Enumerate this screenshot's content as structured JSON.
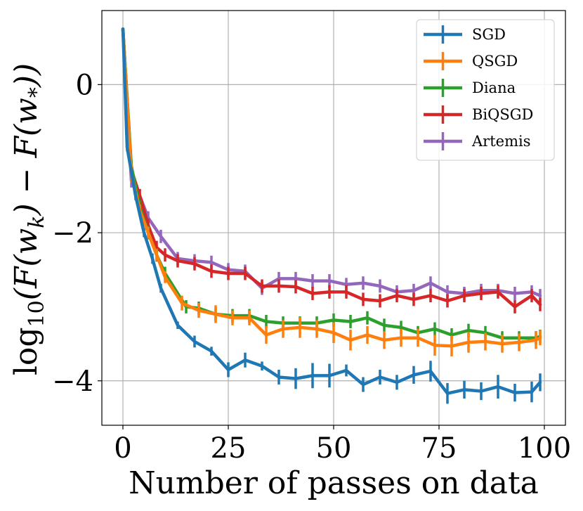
{
  "chart_data": {
    "type": "line",
    "xlabel": "Number of passes on data",
    "ylabel": "log10(F(w_k) − F(w_*))",
    "ylabel_parts": {
      "fn": "log",
      "sub": "10",
      "body1": "(F(w",
      "sub_k": "k",
      "body2": ") − F(w",
      "sub_star": "*",
      "body3": "))"
    },
    "xlim": [
      -5,
      105
    ],
    "ylim": [
      -4.6,
      1.0
    ],
    "xticks": [
      0,
      25,
      50,
      75,
      100
    ],
    "yticks": [
      0,
      -2,
      -4
    ],
    "xtick_labels": [
      "0",
      "25",
      "50",
      "75",
      "100"
    ],
    "ytick_labels": [
      "0",
      "−2",
      "−4"
    ],
    "grid": true,
    "legend_position": "top-right",
    "series": [
      {
        "name": "SGD",
        "color": "#1f77b4",
        "x": [
          0,
          1,
          3,
          5,
          7,
          9,
          13,
          17,
          21,
          25,
          29,
          33,
          37,
          41,
          45,
          49,
          53,
          57,
          61,
          65,
          69,
          73,
          77,
          81,
          85,
          89,
          93,
          97,
          99
        ],
        "y": [
          0.75,
          -0.85,
          -1.5,
          -2.0,
          -2.35,
          -2.75,
          -3.25,
          -3.47,
          -3.6,
          -3.85,
          -3.72,
          -3.8,
          -3.95,
          -3.97,
          -3.93,
          -3.93,
          -3.86,
          -4.05,
          -3.95,
          -4.02,
          -3.92,
          -3.87,
          -4.17,
          -4.12,
          -4.14,
          -4.08,
          -4.16,
          -4.15,
          -4.02
        ],
        "err": [
          0,
          0.05,
          0.06,
          0.06,
          0.07,
          0.06,
          0.05,
          0.08,
          0.06,
          0.1,
          0.1,
          0.06,
          0.1,
          0.14,
          0.17,
          0.16,
          0.08,
          0.1,
          0.1,
          0.1,
          0.12,
          0.14,
          0.14,
          0.12,
          0.12,
          0.16,
          0.12,
          0.14,
          0.12
        ]
      },
      {
        "name": "QSGD",
        "color": "#ff7f0e",
        "x": [
          0,
          2,
          4,
          6,
          8,
          10,
          14,
          18,
          22,
          26,
          30,
          34,
          38,
          42,
          46,
          50,
          54,
          58,
          62,
          66,
          70,
          74,
          78,
          82,
          86,
          90,
          94,
          98,
          99
        ],
        "y": [
          0.75,
          -1.2,
          -1.7,
          -2.0,
          -2.3,
          -2.6,
          -2.95,
          -3.05,
          -3.1,
          -3.15,
          -3.15,
          -3.38,
          -3.3,
          -3.28,
          -3.3,
          -3.35,
          -3.45,
          -3.38,
          -3.45,
          -3.42,
          -3.42,
          -3.52,
          -3.53,
          -3.48,
          -3.47,
          -3.5,
          -3.48,
          -3.45,
          -3.42
        ],
        "err": [
          0,
          0.12,
          0.08,
          0.08,
          0.08,
          0.08,
          0.1,
          0.1,
          0.12,
          0.1,
          0.1,
          0.12,
          0.12,
          0.14,
          0.12,
          0.14,
          0.14,
          0.12,
          0.12,
          0.12,
          0.12,
          0.14,
          0.14,
          0.14,
          0.12,
          0.12,
          0.12,
          0.12,
          0.1
        ]
      },
      {
        "name": "Diana",
        "color": "#2ca02c",
        "x": [
          0,
          2,
          4,
          6,
          8,
          10,
          15,
          18,
          22,
          26,
          30,
          34,
          38,
          42,
          46,
          50,
          54,
          58,
          62,
          66,
          70,
          74,
          78,
          82,
          86,
          90,
          94,
          98,
          99
        ],
        "y": [
          0.75,
          -1.1,
          -1.65,
          -2.0,
          -2.3,
          -2.55,
          -3.0,
          -3.02,
          -3.1,
          -3.12,
          -3.12,
          -3.2,
          -3.22,
          -3.22,
          -3.22,
          -3.18,
          -3.2,
          -3.15,
          -3.25,
          -3.28,
          -3.35,
          -3.3,
          -3.38,
          -3.32,
          -3.35,
          -3.42,
          -3.42,
          -3.42,
          -3.4
        ]
      },
      {
        "name": "BiQSGD",
        "color": "#d62728",
        "x": [
          0,
          2,
          4,
          6,
          8,
          10,
          13,
          17,
          21,
          25,
          29,
          33,
          37,
          41,
          45,
          49,
          53,
          57,
          61,
          65,
          69,
          73,
          77,
          81,
          85,
          89,
          93,
          97,
          99
        ],
        "y": [
          0.75,
          -1.15,
          -1.5,
          -1.9,
          -2.2,
          -2.3,
          -2.38,
          -2.42,
          -2.52,
          -2.55,
          -2.55,
          -2.72,
          -2.72,
          -2.73,
          -2.82,
          -2.8,
          -2.8,
          -2.9,
          -2.92,
          -2.85,
          -2.9,
          -2.85,
          -2.92,
          -2.85,
          -2.82,
          -2.8,
          -3.0,
          -2.85,
          -2.97
        ]
      },
      {
        "name": "Artemis",
        "color": "#9467bd",
        "x": [
          0,
          2,
          4,
          6,
          9,
          13,
          17,
          21,
          25,
          29,
          33,
          37,
          41,
          45,
          49,
          53,
          57,
          61,
          65,
          69,
          73,
          77,
          81,
          85,
          89,
          93,
          97,
          99
        ],
        "y": [
          0.75,
          -1.3,
          -1.5,
          -1.8,
          -2.05,
          -2.35,
          -2.38,
          -2.4,
          -2.5,
          -2.52,
          -2.75,
          -2.62,
          -2.62,
          -2.65,
          -2.65,
          -2.7,
          -2.68,
          -2.72,
          -2.8,
          -2.78,
          -2.68,
          -2.8,
          -2.82,
          -2.78,
          -2.78,
          -2.82,
          -2.8,
          -2.85
        ]
      }
    ]
  }
}
